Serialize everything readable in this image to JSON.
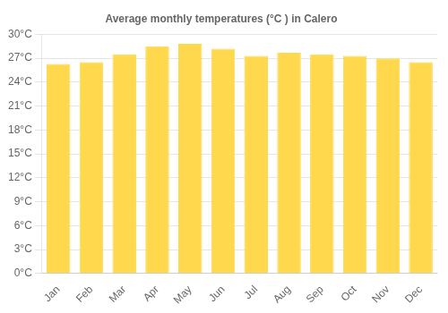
{
  "chart_data": {
    "type": "bar",
    "title": "Average monthly temperatures (°C ) in Calero",
    "categories": [
      "Jan",
      "Feb",
      "Mar",
      "Apr",
      "May",
      "Jun",
      "Jul",
      "Aug",
      "Sep",
      "Oct",
      "Nov",
      "Dec"
    ],
    "values": [
      26.3,
      26.5,
      27.5,
      28.5,
      28.8,
      28.2,
      27.3,
      27.7,
      27.5,
      27.3,
      27.0,
      26.5
    ],
    "color": "#FFD84D",
    "ylim": [
      0,
      30
    ],
    "yticks": [
      {
        "value": 0,
        "label": "0°C"
      },
      {
        "value": 3,
        "label": "3°C"
      },
      {
        "value": 6,
        "label": "6°C"
      },
      {
        "value": 9,
        "label": "9°C"
      },
      {
        "value": 12,
        "label": "12°C"
      },
      {
        "value": 15,
        "label": "15°C"
      },
      {
        "value": 18,
        "label": "18°C"
      },
      {
        "value": 21,
        "label": "21°C"
      },
      {
        "value": 24,
        "label": "24°C"
      },
      {
        "value": 27,
        "label": "27°C"
      },
      {
        "value": 30,
        "label": "30°C"
      }
    ],
    "grid": true
  }
}
